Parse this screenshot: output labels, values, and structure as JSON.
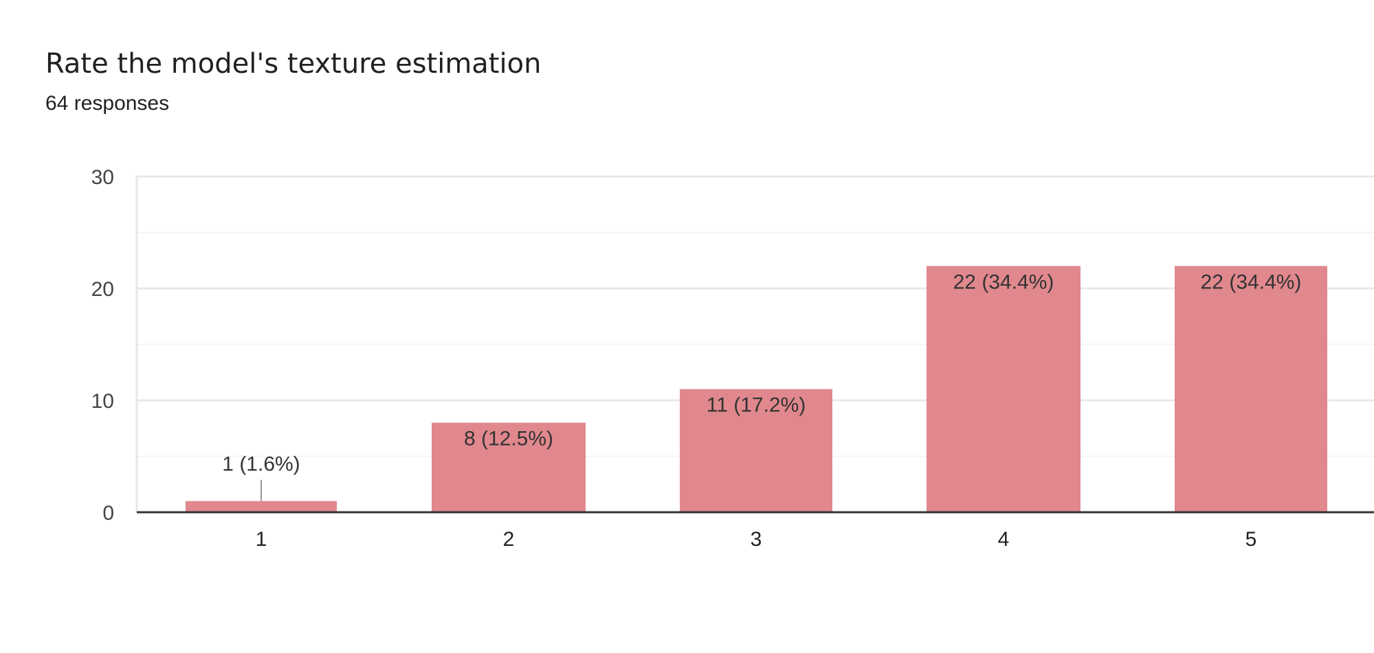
{
  "header": {
    "title": "Rate the model's texture estimation",
    "subtitle": "64 responses"
  },
  "chart_data": {
    "type": "bar",
    "categories": [
      "1",
      "2",
      "3",
      "4",
      "5"
    ],
    "values": [
      1,
      8,
      11,
      22,
      22
    ],
    "data_labels": [
      "1 (1.6%)",
      "8 (12.5%)",
      "11 (17.2%)",
      "22 (34.4%)",
      "22 (34.4%)"
    ],
    "yticks": [
      "0",
      "10",
      "20",
      "30"
    ],
    "ylim": [
      0,
      30
    ],
    "grid": true,
    "legend": "none",
    "bar_color": "#e0888d"
  }
}
